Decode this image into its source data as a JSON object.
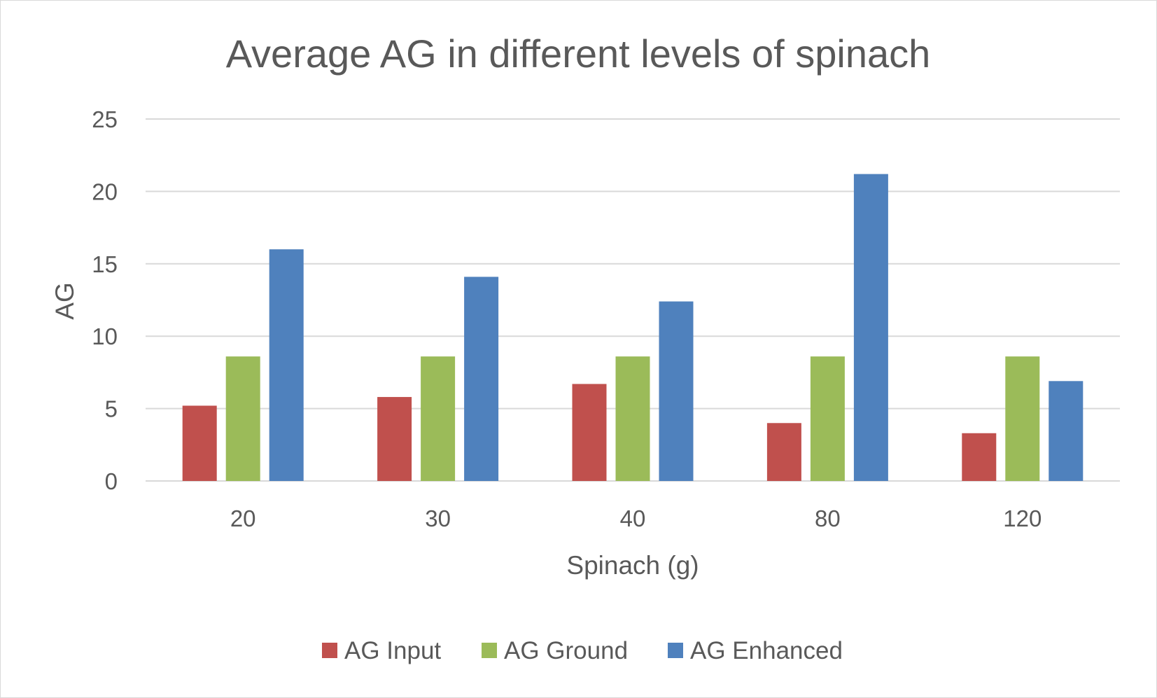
{
  "chart_data": {
    "type": "bar",
    "title": "Average AG in different levels of spinach",
    "xlabel": "Spinach (g)",
    "ylabel": "AG",
    "categories": [
      "20",
      "30",
      "40",
      "80",
      "120"
    ],
    "series": [
      {
        "name": "AG Input",
        "color": "#c0504d",
        "values": [
          5.2,
          5.8,
          6.7,
          4.0,
          3.3
        ]
      },
      {
        "name": "AG Ground",
        "color": "#9bbb59",
        "values": [
          8.6,
          8.6,
          8.6,
          8.6,
          8.6
        ]
      },
      {
        "name": "AG Enhanced",
        "color": "#4f81bd",
        "values": [
          16.0,
          14.1,
          12.4,
          21.2,
          6.9
        ]
      }
    ],
    "ylim": [
      0,
      25
    ],
    "yticks": [
      "0",
      "5",
      "10",
      "15",
      "20",
      "25"
    ],
    "grid": true,
    "legend": "bottom"
  }
}
